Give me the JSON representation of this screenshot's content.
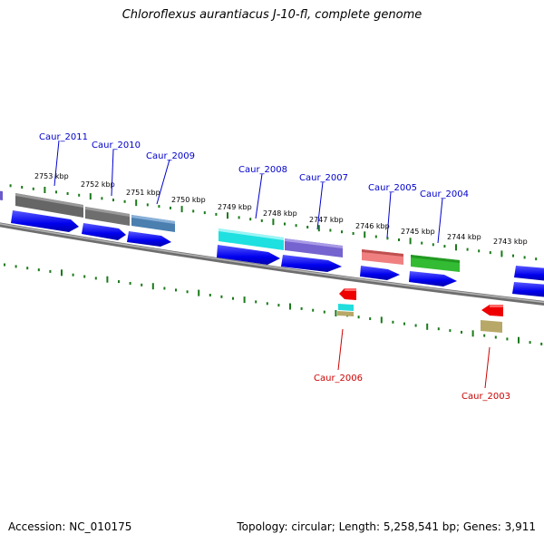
{
  "title": "Chloroflexus aurantiacus J-10-fl, complete genome",
  "footer": {
    "accession": "Accession: NC_010175",
    "topology": "Topology: circular; Length: 5,258,541 bp; Genes: 3,911"
  },
  "colors": {
    "backbone": "#7a7a7a",
    "tick": "#1a7a1a",
    "forward_label": "#0000cc",
    "reverse_label": "#cc0000",
    "cds_arrow": "#0000ee"
  },
  "kbp_labels": [
    "2753 kbp",
    "2752 kbp",
    "2751 kbp",
    "2750 kbp",
    "2749 kbp",
    "2748 kbp",
    "2747 kbp",
    "2746 kbp",
    "2745 kbp",
    "2744 kbp",
    "2743 kbp"
  ],
  "genes_forward": [
    {
      "name": "Caur_2011",
      "color": "#6b6b6b"
    },
    {
      "name": "Caur_2010",
      "color": "#707070"
    },
    {
      "name": "Caur_2009",
      "color": "#4a7fb0"
    },
    {
      "name": "Caur_2008",
      "color": "#22e0e0"
    },
    {
      "name": "Caur_2007",
      "color": "#7a6acd"
    },
    {
      "name": "Caur_2005",
      "color": "#f08080"
    },
    {
      "name": "Caur_2004",
      "color": "#33bb33"
    }
  ],
  "genes_reverse": [
    {
      "name": "Caur_2006",
      "color": "#ee0000"
    },
    {
      "name": "Caur_2003",
      "color": "#ee0000"
    }
  ]
}
